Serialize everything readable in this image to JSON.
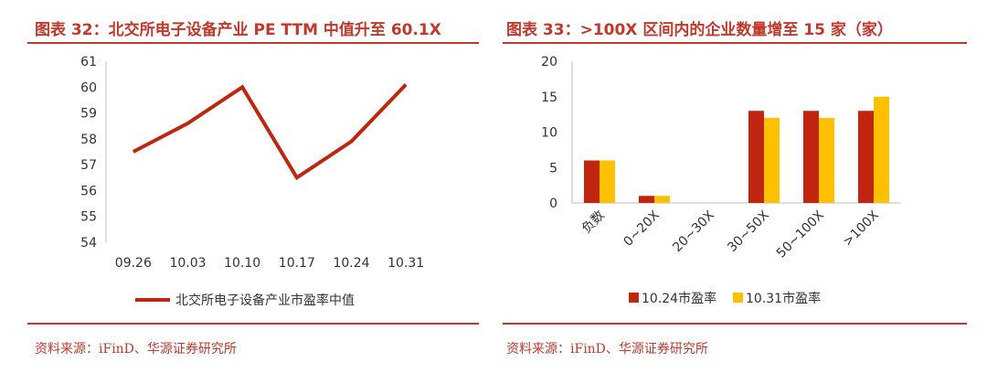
{
  "left": {
    "title": "图表 32：北交所电子设备产业 PE TTM 中值升至 60.1X",
    "source": "资料来源：iFinD、华源证券研究所"
  },
  "right": {
    "title": "图表 33：>100X 区间内的企业数量增至 15 家（家）",
    "source": "资料来源：iFinD、华源证券研究所"
  },
  "chart_data": [
    {
      "type": "line",
      "title": "",
      "categories": [
        "09.26",
        "10.03",
        "10.10",
        "10.17",
        "10.24",
        "10.31"
      ],
      "series": [
        {
          "name": "北交所电子设备产业市盈率中值",
          "values": [
            57.5,
            58.6,
            60.0,
            56.5,
            57.9,
            60.1
          ],
          "color": "#c0250f"
        }
      ],
      "ylim": [
        54,
        61
      ],
      "yticks": [
        54,
        55,
        56,
        57,
        58,
        59,
        60,
        61
      ],
      "grid": false,
      "legend": "bottom"
    },
    {
      "type": "bar",
      "title": "",
      "categories": [
        "负数",
        "0~20X",
        "20~30X",
        "30~50X",
        "50~100X",
        ">100X"
      ],
      "series": [
        {
          "name": "10.24市盈率",
          "values": [
            6,
            1,
            0,
            13,
            13,
            13
          ],
          "color": "#c0250f"
        },
        {
          "name": "10.31市盈率",
          "values": [
            6,
            1,
            0,
            12,
            12,
            15
          ],
          "color": "#ffc000"
        }
      ],
      "ylim": [
        0,
        20
      ],
      "yticks": [
        0,
        5,
        10,
        15,
        20
      ],
      "grid": false,
      "legend": "bottom"
    }
  ]
}
